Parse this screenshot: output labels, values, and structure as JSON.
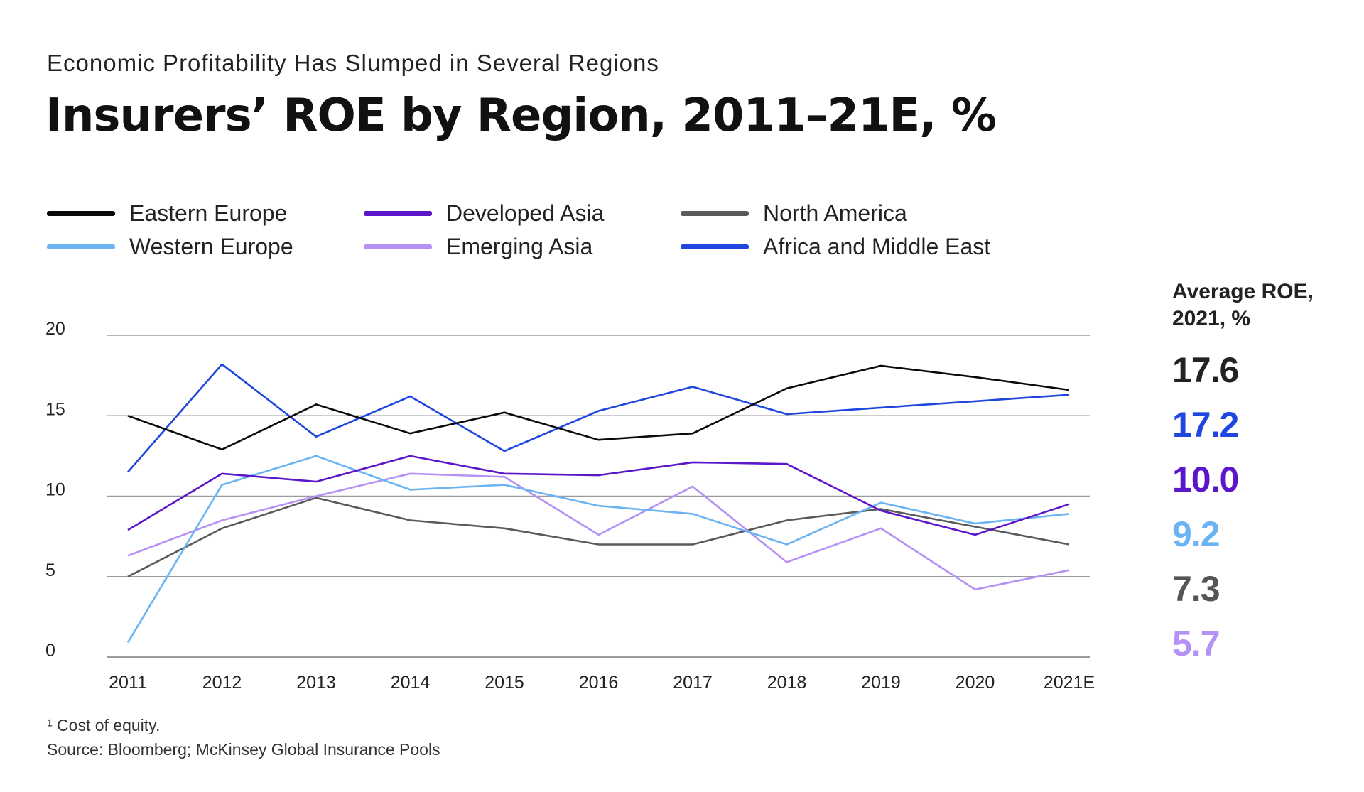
{
  "subtitle": "Economic Profitability Has Slumped in Several Regions",
  "title": "Insurers’ ROE by Region, 2011–21E, %",
  "legend": [
    {
      "name": "Eastern Europe",
      "color": "#0a0a0a"
    },
    {
      "name": "Developed Asia",
      "color": "#5a16c8"
    },
    {
      "name": "North America",
      "color": "#5a5a5a"
    },
    {
      "name": "Western Europe",
      "color": "#6bb4f4"
    },
    {
      "name": "Emerging Asia",
      "color": "#b691f5"
    },
    {
      "name": "Africa and Middle East",
      "color": "#1f47e0"
    }
  ],
  "average": {
    "header_line1": "Average ROE,",
    "header_line2": "2021, %",
    "values": [
      {
        "value": "17.6",
        "color": "#222222"
      },
      {
        "value": "17.2",
        "color": "#1f47e0"
      },
      {
        "value": "10.0",
        "color": "#5a16c8"
      },
      {
        "value": "9.2",
        "color": "#6bb4f4"
      },
      {
        "value": "7.3",
        "color": "#555555"
      },
      {
        "value": "5.7",
        "color": "#b691f5"
      }
    ]
  },
  "footnotes": {
    "note1": "¹ Cost of equity.",
    "source": "Source: Bloomberg; McKinsey Global Insurance Pools"
  },
  "chart_data": {
    "type": "line",
    "x": [
      "2011",
      "2012",
      "2013",
      "2014",
      "2015",
      "2016",
      "2017",
      "2018",
      "2019",
      "2020",
      "2021E"
    ],
    "ylim": [
      0,
      20
    ],
    "yticks": [
      "0",
      "5",
      "10",
      "15",
      "20"
    ],
    "grid": true,
    "legend_position": "top",
    "series": [
      {
        "name": "Eastern Europe",
        "color": "#0a0a0a",
        "values": [
          15.0,
          12.9,
          15.7,
          13.9,
          15.2,
          13.5,
          13.9,
          16.7,
          18.1,
          17.4,
          16.6
        ]
      },
      {
        "name": "Developed Asia",
        "color": "#5a16c8",
        "values": [
          7.9,
          11.4,
          10.9,
          12.5,
          11.4,
          11.3,
          12.1,
          12.0,
          9.1,
          7.6,
          9.5
        ]
      },
      {
        "name": "North America",
        "color": "#5a5a5a",
        "values": [
          5.0,
          8.0,
          9.9,
          8.5,
          8.0,
          7.0,
          7.0,
          8.5,
          9.2,
          8.1,
          7.0
        ]
      },
      {
        "name": "Western Europe",
        "color": "#6bb4f4",
        "values": [
          0.9,
          10.7,
          12.5,
          10.4,
          10.7,
          9.4,
          8.9,
          7.0,
          9.6,
          8.3,
          8.9
        ]
      },
      {
        "name": "Emerging Asia",
        "color": "#b691f5",
        "values": [
          6.3,
          8.5,
          10.0,
          11.4,
          11.2,
          7.6,
          10.6,
          5.9,
          8.0,
          4.2,
          5.4
        ]
      },
      {
        "name": "Africa and Middle East",
        "color": "#1f47e0",
        "values": [
          11.5,
          18.2,
          13.7,
          16.2,
          12.8,
          15.3,
          16.8,
          15.1,
          15.5,
          15.9,
          16.3
        ]
      }
    ]
  }
}
